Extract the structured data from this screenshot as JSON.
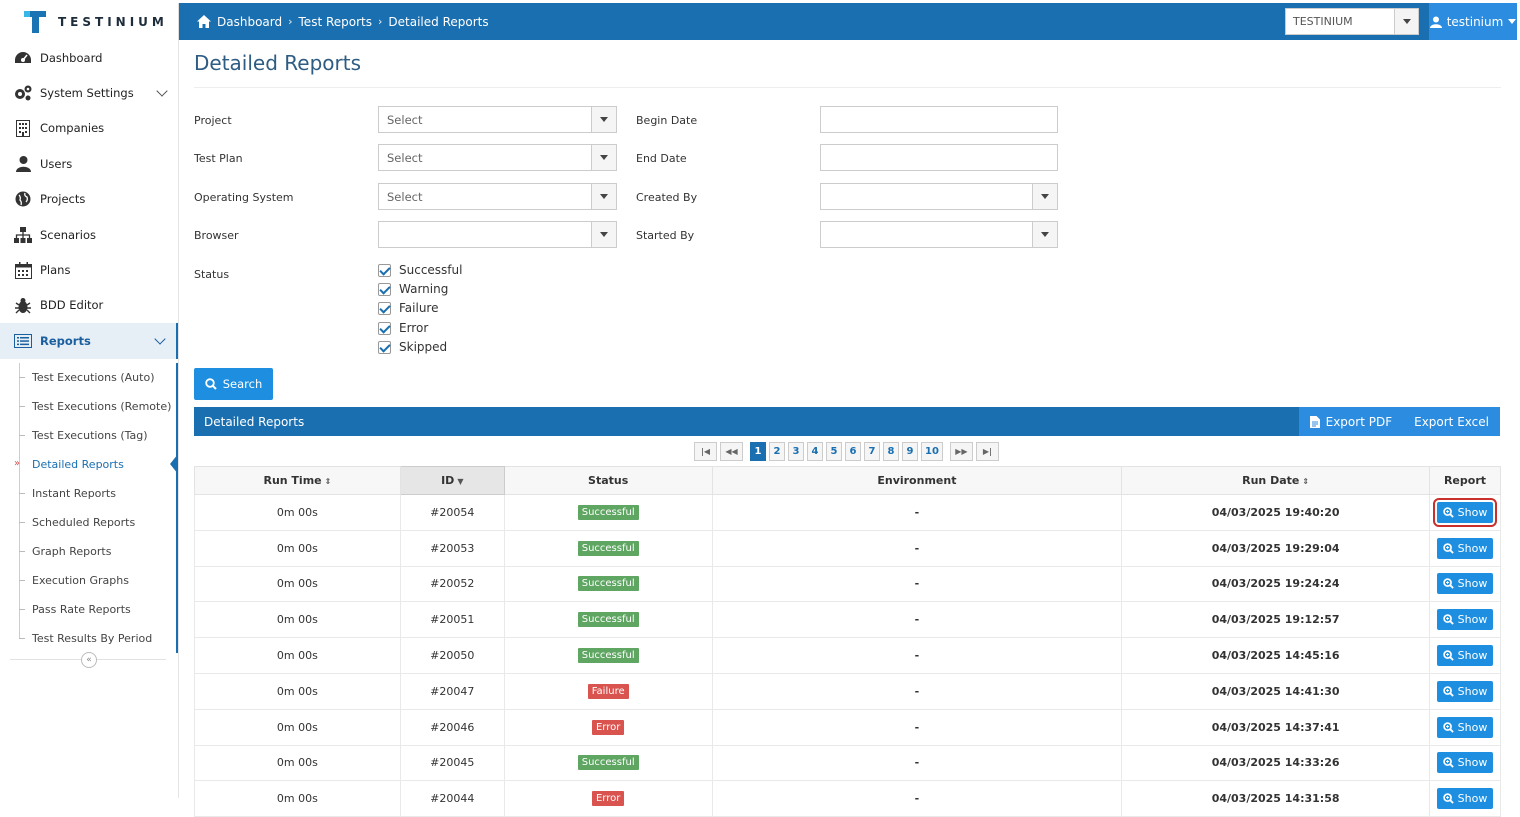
{
  "brand": {
    "name": "TESTINIUM"
  },
  "breadcrumb": {
    "home": "Dashboard",
    "level1": "Test Reports",
    "level2": "Detailed Reports"
  },
  "org_select": {
    "value": "TESTINIUM"
  },
  "user": {
    "name": "testinium"
  },
  "sidebar": {
    "items": [
      {
        "label": "Dashboard",
        "icon": "dashboard-icon"
      },
      {
        "label": "System Settings",
        "icon": "gears-icon"
      },
      {
        "label": "Companies",
        "icon": "building-icon"
      },
      {
        "label": "Users",
        "icon": "user-icon"
      },
      {
        "label": "Projects",
        "icon": "globe-icon"
      },
      {
        "label": "Scenarios",
        "icon": "sitemap-icon"
      },
      {
        "label": "Plans",
        "icon": "calendar-icon"
      },
      {
        "label": "BDD Editor",
        "icon": "bug-icon"
      },
      {
        "label": "Reports",
        "icon": "list-icon"
      }
    ],
    "sub_items": [
      "Test Executions (Auto)",
      "Test Executions (Remote)",
      "Test Executions (Tag)",
      "Detailed Reports",
      "Instant Reports",
      "Scheduled Reports",
      "Graph Reports",
      "Execution Graphs",
      "Pass Rate Reports",
      "Test Results By Period"
    ],
    "current_marker": "»",
    "collapse_glyph": "«"
  },
  "page": {
    "title": "Detailed Reports"
  },
  "filters": {
    "project_label": "Project",
    "project_value": "Select",
    "testplan_label": "Test Plan",
    "testplan_value": "Select",
    "os_label": "Operating System",
    "os_value": "Select",
    "browser_label": "Browser",
    "browser_value": "",
    "begin_label": "Begin Date",
    "end_label": "End Date",
    "created_label": "Created By",
    "started_label": "Started By",
    "status_label": "Status",
    "statuses": [
      "Successful",
      "Warning",
      "Failure",
      "Error",
      "Skipped"
    ],
    "search_label": "Search"
  },
  "panel": {
    "title": "Detailed Reports",
    "export_pdf": "Export PDF",
    "export_excel": "Export Excel"
  },
  "pager": {
    "pages": [
      "1",
      "2",
      "3",
      "4",
      "5",
      "6",
      "7",
      "8",
      "9",
      "10"
    ],
    "current": "1"
  },
  "table": {
    "headers": [
      "Run Time",
      "ID",
      "Status",
      "Environment",
      "Run Date",
      "Report"
    ],
    "show_label": "Show",
    "rows": [
      {
        "runtime": "0m 00s",
        "id": "#20054",
        "status": "Successful",
        "env": "-",
        "date": "04/03/2025 19:40:20"
      },
      {
        "runtime": "0m 00s",
        "id": "#20053",
        "status": "Successful",
        "env": "-",
        "date": "04/03/2025 19:29:04"
      },
      {
        "runtime": "0m 00s",
        "id": "#20052",
        "status": "Successful",
        "env": "-",
        "date": "04/03/2025 19:24:24"
      },
      {
        "runtime": "0m 00s",
        "id": "#20051",
        "status": "Successful",
        "env": "-",
        "date": "04/03/2025 19:12:57"
      },
      {
        "runtime": "0m 00s",
        "id": "#20050",
        "status": "Successful",
        "env": "-",
        "date": "04/03/2025 14:45:16"
      },
      {
        "runtime": "0m 00s",
        "id": "#20047",
        "status": "Failure",
        "env": "-",
        "date": "04/03/2025 14:41:30"
      },
      {
        "runtime": "0m 00s",
        "id": "#20046",
        "status": "Error",
        "env": "-",
        "date": "04/03/2025 14:37:41"
      },
      {
        "runtime": "0m 00s",
        "id": "#20045",
        "status": "Successful",
        "env": "-",
        "date": "04/03/2025 14:33:26"
      },
      {
        "runtime": "0m 00s",
        "id": "#20044",
        "status": "Error",
        "env": "-",
        "date": "04/03/2025 14:31:58"
      }
    ]
  },
  "colors": {
    "primary": "#1a6fb0",
    "accent": "#1e8fe0",
    "success": "#5fa663",
    "danger": "#d9534f"
  }
}
